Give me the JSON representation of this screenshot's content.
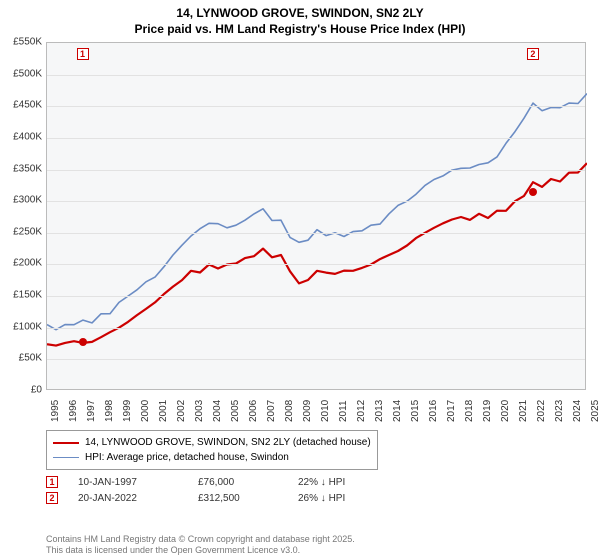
{
  "title_line1": "14, LYNWOOD GROVE, SWINDON, SN2 2LY",
  "title_line2": "Price paid vs. HM Land Registry's House Price Index (HPI)",
  "chart": {
    "type": "line",
    "background_color": "#f6f7f8",
    "grid_color": "#e2e2e2",
    "border_color": "#bbbbbb",
    "x_years": [
      1995,
      1996,
      1997,
      1998,
      1999,
      2000,
      2001,
      2002,
      2003,
      2004,
      2005,
      2006,
      2007,
      2008,
      2009,
      2010,
      2011,
      2012,
      2013,
      2014,
      2015,
      2016,
      2017,
      2018,
      2019,
      2020,
      2021,
      2022,
      2023,
      2024,
      2025
    ],
    "ylim": [
      0,
      550000
    ],
    "ytick_step": 50000,
    "ytick_labels": [
      "£0",
      "£50K",
      "£100K",
      "£150K",
      "£200K",
      "£250K",
      "£300K",
      "£350K",
      "£400K",
      "£450K",
      "£500K",
      "£550K"
    ],
    "title_fontsize": 12,
    "tick_fontsize": 10,
    "series": [
      {
        "name": "price_paid",
        "label": "14, LYNWOOD GROVE, SWINDON, SN2 2LY (detached house)",
        "color": "#cc0000",
        "line_width": 2.2,
        "x": [
          1995,
          1996,
          1997,
          1998,
          1999,
          2000,
          2001,
          2002,
          2003,
          2004,
          2005,
          2006,
          2007,
          2008,
          2009,
          2010,
          2011,
          2012,
          2013,
          2014,
          2015,
          2016,
          2017,
          2018,
          2019,
          2020,
          2021,
          2022,
          2023,
          2024,
          2025
        ],
        "y": [
          74000,
          76000,
          76000,
          85000,
          100000,
          120000,
          140000,
          165000,
          190000,
          200000,
          200000,
          210000,
          225000,
          215000,
          170000,
          190000,
          185000,
          190000,
          200000,
          215000,
          230000,
          250000,
          265000,
          275000,
          280000,
          285000,
          300000,
          330000,
          335000,
          345000,
          360000
        ]
      },
      {
        "name": "hpi",
        "label": "HPI: Average price, detached house, Swindon",
        "color": "#6b8cc4",
        "line_width": 1.6,
        "x": [
          1995,
          1996,
          1997,
          1998,
          1999,
          2000,
          2001,
          2002,
          2003,
          2004,
          2005,
          2006,
          2007,
          2008,
          2009,
          2010,
          2011,
          2012,
          2013,
          2014,
          2015,
          2016,
          2017,
          2018,
          2019,
          2020,
          2021,
          2022,
          2023,
          2024,
          2025
        ],
        "y": [
          105000,
          105000,
          112000,
          122000,
          140000,
          160000,
          180000,
          215000,
          245000,
          265000,
          258000,
          270000,
          288000,
          270000,
          235000,
          255000,
          250000,
          252000,
          262000,
          280000,
          300000,
          325000,
          340000,
          352000,
          358000,
          370000,
          410000,
          455000,
          448000,
          455000,
          470000
        ]
      }
    ],
    "sale_points": [
      {
        "marker_num": "1",
        "x": 1997.03,
        "y": 76000,
        "color": "#cc0000"
      },
      {
        "marker_num": "2",
        "x": 2022.05,
        "y": 312500,
        "color": "#cc0000"
      }
    ]
  },
  "legend": {
    "items": [
      {
        "label": "14, LYNWOOD GROVE, SWINDON, SN2 2LY (detached house)",
        "color": "#cc0000",
        "width": 2.2
      },
      {
        "label": "HPI: Average price, detached house, Swindon",
        "color": "#6b8cc4",
        "width": 1.6
      }
    ]
  },
  "sales_table": {
    "rows": [
      {
        "num": "1",
        "date": "10-JAN-1997",
        "price": "£76,000",
        "pct": "22% ↓ HPI"
      },
      {
        "num": "2",
        "date": "20-JAN-2022",
        "price": "£312,500",
        "pct": "26% ↓ HPI"
      }
    ]
  },
  "footer_lines": [
    "Contains HM Land Registry data © Crown copyright and database right 2025.",
    "This data is licensed under the Open Government Licence v3.0."
  ]
}
